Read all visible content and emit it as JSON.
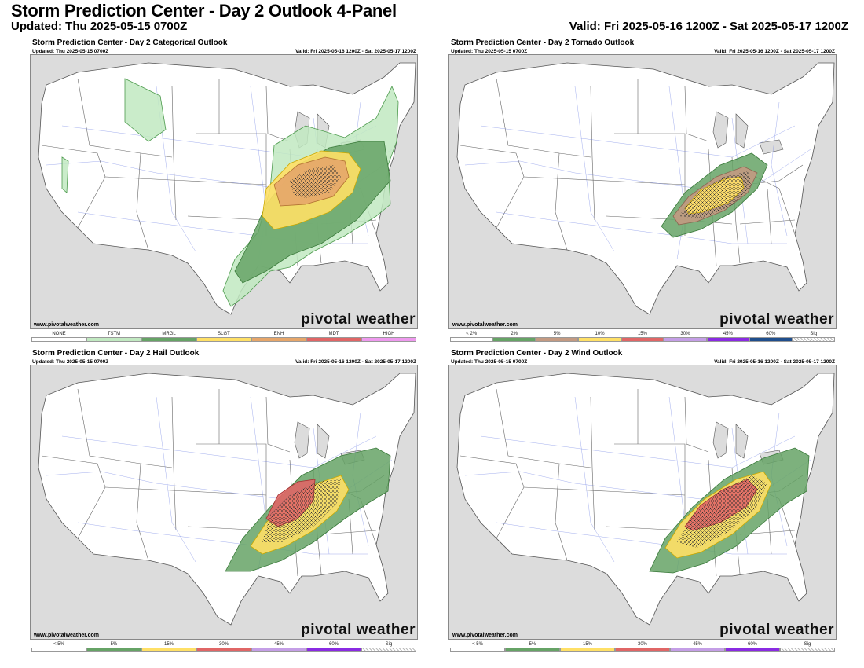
{
  "header": {
    "title": "Storm Prediction Center - Day 2 Outlook 4-Panel",
    "updated": "Updated: Thu 2025-05-15 0700Z",
    "valid": "Valid: Fri 2025-05-16 1200Z - Sat 2025-05-17 1200Z"
  },
  "panels": [
    {
      "title": "Storm Prediction Center - Day 2 Categorical Outlook",
      "updated": "Updated: Thu 2025-05-15 0700Z",
      "valid": "Valid: Fri 2025-05-16 1200Z - Sat 2025-05-17 1200Z",
      "site": "www.pivotalweather.com",
      "brand": "pivotal weather",
      "legend": [
        {
          "label": "NONE",
          "color": "#ffffff"
        },
        {
          "label": "TSTM",
          "color": "#c1e9c1"
        },
        {
          "label": "MRGL",
          "color": "#66a366"
        },
        {
          "label": "SLGT",
          "color": "#ffe066"
        },
        {
          "label": "ENH",
          "color": "#e6a66a"
        },
        {
          "label": "MDT",
          "color": "#e06666"
        },
        {
          "label": "HIGH",
          "color": "#ee99ee"
        }
      ]
    },
    {
      "title": "Storm Prediction Center - Day 2 Tornado Outlook",
      "updated": "Updated: Thu 2025-05-15 0700Z",
      "valid": "Valid: Fri 2025-05-16 1200Z - Sat 2025-05-17 1200Z",
      "site": "www.pivotalweather.com",
      "brand": "pivotal weather",
      "legend": [
        {
          "label": "< 2%",
          "color": "#ffffff"
        },
        {
          "label": "2%",
          "color": "#66a366"
        },
        {
          "label": "5%",
          "color": "#c39a82"
        },
        {
          "label": "10%",
          "color": "#ffe066"
        },
        {
          "label": "15%",
          "color": "#e06666"
        },
        {
          "label": "30%",
          "color": "#c49ee6"
        },
        {
          "label": "45%",
          "color": "#8a2be2"
        },
        {
          "label": "60%",
          "color": "#1f4e8c"
        },
        {
          "label": "Sig",
          "color": "hatch"
        }
      ]
    },
    {
      "title": "Storm Prediction Center - Day 2 Hail Outlook",
      "updated": "Updated: Thu 2025-05-15 0700Z",
      "valid": "Valid: Fri 2025-05-16 1200Z - Sat 2025-05-17 1200Z",
      "site": "www.pivotalweather.com",
      "brand": "pivotal weather",
      "legend": [
        {
          "label": "< 5%",
          "color": "#ffffff"
        },
        {
          "label": "5%",
          "color": "#66a366"
        },
        {
          "label": "15%",
          "color": "#ffe066"
        },
        {
          "label": "30%",
          "color": "#e06666"
        },
        {
          "label": "45%",
          "color": "#c49ee6"
        },
        {
          "label": "60%",
          "color": "#8a2be2"
        },
        {
          "label": "Sig",
          "color": "hatch"
        }
      ]
    },
    {
      "title": "Storm Prediction Center - Day 2 Wind Outlook",
      "updated": "Updated: Thu 2025-05-15 0700Z",
      "valid": "Valid: Fri 2025-05-16 1200Z - Sat 2025-05-17 1200Z",
      "site": "www.pivotalweather.com",
      "brand": "pivotal weather",
      "legend": [
        {
          "label": "< 5%",
          "color": "#ffffff"
        },
        {
          "label": "5%",
          "color": "#66a366"
        },
        {
          "label": "15%",
          "color": "#ffe066"
        },
        {
          "label": "30%",
          "color": "#e06666"
        },
        {
          "label": "45%",
          "color": "#c49ee6"
        },
        {
          "label": "60%",
          "color": "#8a2be2"
        },
        {
          "label": "Sig",
          "color": "hatch"
        }
      ]
    }
  ]
}
